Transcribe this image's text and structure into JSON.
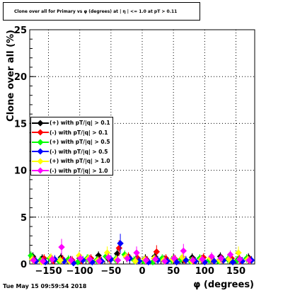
{
  "title": "Clone  over all for Primary vs φ (degrees) at | η | <= 1.0 at pT > 0.11",
  "datestamp": "Tue May 15 09:59:54 2018",
  "chart_data": {
    "type": "scatter",
    "xlabel": "φ (degrees)",
    "ylabel": "Clone  over all (%)",
    "xlim": [
      -180,
      180
    ],
    "ylim": [
      0,
      25
    ],
    "xticks": [
      -150,
      -100,
      -50,
      0,
      50,
      100,
      150
    ],
    "yticks": [
      0,
      5,
      10,
      15,
      20,
      25
    ],
    "grid": true,
    "legend_position": "left",
    "series": [
      {
        "name": "(+) with pT/|q| > 0.1",
        "color": "#000000",
        "x": [
          -175,
          -160,
          -145,
          -130,
          -115,
          -100,
          -85,
          -70,
          -55,
          -40,
          -25,
          -10,
          5,
          20,
          35,
          50,
          65,
          80,
          95,
          110,
          125,
          140,
          155,
          170
        ],
        "y": [
          0.8,
          0.6,
          0.5,
          0.7,
          0.4,
          0.6,
          0.5,
          0.9,
          0.6,
          1.1,
          0.7,
          0.5,
          0.6,
          0.8,
          0.5,
          0.6,
          0.4,
          0.7,
          0.5,
          0.6,
          0.8,
          0.5,
          0.6,
          0.7
        ]
      },
      {
        "name": "(-) with pT/|q| > 0.1",
        "color": "#ff0000",
        "x": [
          -172,
          -157,
          -142,
          -127,
          -112,
          -97,
          -82,
          -67,
          -52,
          -37,
          -22,
          -7,
          8,
          23,
          38,
          53,
          68,
          83,
          98,
          113,
          128,
          143,
          158,
          173
        ],
        "y": [
          0.4,
          0.6,
          0.3,
          0.5,
          0.4,
          0.3,
          0.6,
          0.4,
          0.5,
          1.7,
          0.8,
          0.6,
          0.4,
          1.3,
          0.6,
          0.5,
          0.4,
          0.3,
          0.7,
          0.4,
          0.5,
          0.6,
          0.3,
          0.4
        ]
      },
      {
        "name": "(+) with pT/|q| > 0.5",
        "color": "#00ff00",
        "x": [
          -178,
          -163,
          -148,
          -133,
          -118,
          -103,
          -88,
          -73,
          -58,
          -43,
          -28,
          -13,
          2,
          17,
          32,
          47,
          62,
          77,
          92,
          107,
          122,
          137,
          152,
          167
        ],
        "y": [
          0.9,
          0.4,
          0.6,
          0.3,
          0.5,
          0.2,
          0.6,
          0.4,
          0.8,
          0.5,
          1.0,
          0.4,
          0.3,
          0.2,
          0.6,
          0.4,
          0.5,
          0.3,
          0.6,
          0.4,
          0.3,
          0.5,
          0.4,
          0.6
        ]
      },
      {
        "name": "(-) with pT/|q| > 0.5",
        "color": "#0000ff",
        "x": [
          -170,
          -155,
          -140,
          -125,
          -110,
          -95,
          -80,
          -65,
          -50,
          -35,
          -20,
          -5,
          10,
          25,
          40,
          55,
          70,
          85,
          100,
          115,
          130,
          145,
          160,
          175
        ],
        "y": [
          0.3,
          0.2,
          0.5,
          0.3,
          0.1,
          0.4,
          0.2,
          0.3,
          0.5,
          2.2,
          0.6,
          0.3,
          0.2,
          0.4,
          0.3,
          0.2,
          0.4,
          0.3,
          0.2,
          0.3,
          0.4,
          0.2,
          0.3,
          0.4
        ]
      },
      {
        "name": "(+) with pT/|q| > 1.0",
        "color": "#ffff00",
        "x": [
          -176,
          -161,
          -146,
          -131,
          -116,
          -101,
          -86,
          -71,
          -56,
          -41,
          -26,
          -11,
          4,
          19,
          34,
          49,
          64,
          79,
          94,
          109,
          124,
          139,
          154,
          169
        ],
        "y": [
          0.5,
          0.2,
          0.7,
          0.4,
          0.3,
          0.9,
          0.6,
          0.4,
          1.2,
          0.5,
          0.8,
          0.3,
          0.5,
          0.6,
          0.4,
          0.5,
          0.7,
          0.3,
          0.5,
          0.6,
          0.4,
          0.5,
          1.2,
          0.5
        ]
      },
      {
        "name": "(-) with pT/|q| > 1.0",
        "color": "#ff00ff",
        "x": [
          -174,
          -159,
          -144,
          -129,
          -114,
          -99,
          -84,
          -69,
          -54,
          -39,
          -24,
          -9,
          6,
          21,
          36,
          51,
          66,
          81,
          96,
          111,
          126,
          141,
          156,
          171
        ],
        "y": [
          0.4,
          0.3,
          0.5,
          1.8,
          0.4,
          0.6,
          0.5,
          0.3,
          0.7,
          0.4,
          0.6,
          1.2,
          0.4,
          0.5,
          0.3,
          0.6,
          1.4,
          0.4,
          0.5,
          0.8,
          0.6,
          1.0,
          0.5,
          0.4
        ]
      }
    ]
  }
}
